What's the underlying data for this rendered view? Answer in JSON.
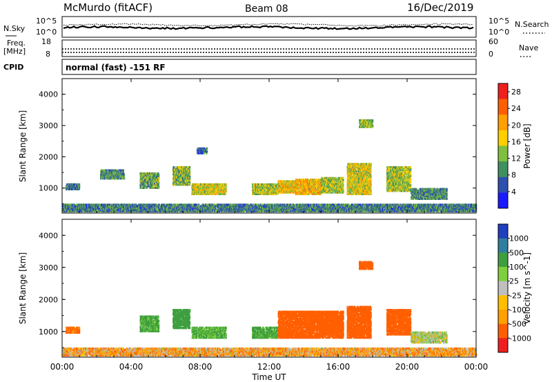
{
  "header": {
    "station": "McMurdo (fitACF)",
    "beam": "Beam 08",
    "date": "16/Dec/2019"
  },
  "noise_panel": {
    "left_label": "N.Sky",
    "right_label": "N.Search",
    "tick_top_left": "10^5",
    "tick_bottom_left": "10^0",
    "tick_top_right": "10^5",
    "tick_bottom_right": "10^0"
  },
  "freq_panel": {
    "label_line1": "Freq.",
    "label_line2": "[MHz]",
    "tick_top": "18",
    "tick_bottom": "8",
    "right_label": "Nave",
    "right_tick_top": "60",
    "right_tick_bottom": "0"
  },
  "cpid_panel": {
    "label": "CPID",
    "text": "normal (fast) -151 RF"
  },
  "colors": {
    "power": [
      "#1a1aff",
      "#2f4fb0",
      "#3f8f5f",
      "#7fbf3f",
      "#ffcf00",
      "#ff9f00",
      "#ff5f00",
      "#ef1f1f"
    ],
    "velocity": [
      "#ef1f1f",
      "#ff5f00",
      "#ff9f00",
      "#ffbf00",
      "#bfbfbf",
      "#7fcf3f",
      "#3f9f3f",
      "#2f7f9f",
      "#1f3fbf"
    ],
    "ground_scatter": "#bfbfbf"
  },
  "chart_data": [
    {
      "type": "heatmap",
      "name": "power",
      "ylabel": "Slant Range [km]",
      "ylim": [
        200,
        4500
      ],
      "yticks": [
        "1000",
        "2000",
        "3000",
        "4000"
      ],
      "xlim": [
        "00:00",
        "24:00"
      ],
      "colorbar_label": "Power [dB]",
      "colorbar_ticks": [
        "4",
        "8",
        "12",
        "16",
        "20",
        "24",
        "28"
      ],
      "colorbar_range": [
        0,
        30
      ],
      "regions": [
        {
          "t": [
            0.2,
            1.0
          ],
          "r": [
            950,
            1150
          ],
          "v": 8
        },
        {
          "t": [
            2.2,
            3.6
          ],
          "r": [
            1300,
            1600
          ],
          "v": 10
        },
        {
          "t": [
            4.5,
            5.6
          ],
          "r": [
            1000,
            1500
          ],
          "v": 12
        },
        {
          "t": [
            6.4,
            7.4
          ],
          "r": [
            1100,
            1700
          ],
          "v": 13
        },
        {
          "t": [
            7.5,
            9.5
          ],
          "r": [
            800,
            1150
          ],
          "v": 17
        },
        {
          "t": [
            7.8,
            8.4
          ],
          "r": [
            2100,
            2300
          ],
          "v": 8
        },
        {
          "t": [
            11.0,
            12.5
          ],
          "r": [
            800,
            1150
          ],
          "v": 15
        },
        {
          "t": [
            12.5,
            13.5
          ],
          "r": [
            850,
            1250
          ],
          "v": 19
        },
        {
          "t": [
            13.5,
            15.0
          ],
          "r": [
            800,
            1300
          ],
          "v": 20
        },
        {
          "t": [
            15.0,
            16.3
          ],
          "r": [
            850,
            1350
          ],
          "v": 15
        },
        {
          "t": [
            16.5,
            17.9
          ],
          "r": [
            800,
            1800
          ],
          "v": 17
        },
        {
          "t": [
            17.2,
            18.0
          ],
          "r": [
            2950,
            3200
          ],
          "v": 14
        },
        {
          "t": [
            18.8,
            20.2
          ],
          "r": [
            900,
            1700
          ],
          "v": 15
        },
        {
          "t": [
            20.2,
            22.3
          ],
          "r": [
            650,
            1000
          ],
          "v": 10
        },
        {
          "t": [
            0.0,
            24.0
          ],
          "r": [
            250,
            500
          ],
          "v": 9
        }
      ]
    },
    {
      "type": "heatmap",
      "name": "velocity",
      "ylabel": "Slant Range [km]",
      "ylim": [
        200,
        4500
      ],
      "yticks": [
        "1000",
        "2000",
        "3000",
        "4000"
      ],
      "xlim": [
        "00:00",
        "24:00"
      ],
      "xlabel": "Time UT",
      "xticks": [
        "00:00",
        "04:00",
        "08:00",
        "12:00",
        "16:00",
        "20:00",
        "00:00"
      ],
      "colorbar_label": "Velocity [m s^-1]",
      "colorbar_ticks": [
        "1000",
        "500",
        "100",
        "25",
        "-25",
        "-100",
        "-500",
        "-1000"
      ],
      "regions": [
        {
          "t": [
            0.2,
            1.0
          ],
          "r": [
            950,
            1150
          ],
          "v": -150
        },
        {
          "t": [
            4.5,
            5.6
          ],
          "r": [
            1000,
            1500
          ],
          "v": 150
        },
        {
          "t": [
            6.4,
            7.4
          ],
          "r": [
            1100,
            1700
          ],
          "v": 200
        },
        {
          "t": [
            7.5,
            9.5
          ],
          "r": [
            800,
            1150
          ],
          "v": 120
        },
        {
          "t": [
            11.0,
            12.5
          ],
          "r": [
            800,
            1150
          ],
          "v": 150
        },
        {
          "t": [
            12.5,
            16.3
          ],
          "r": [
            800,
            1650
          ],
          "v": -300
        },
        {
          "t": [
            16.5,
            17.9
          ],
          "r": [
            800,
            1800
          ],
          "v": -350
        },
        {
          "t": [
            17.2,
            18.0
          ],
          "r": [
            2950,
            3200
          ],
          "v": -200
        },
        {
          "t": [
            18.8,
            20.2
          ],
          "r": [
            900,
            1700
          ],
          "v": -300
        },
        {
          "t": [
            20.2,
            22.3
          ],
          "r": [
            650,
            1000
          ],
          "v": 20
        },
        {
          "t": [
            0.0,
            24.0
          ],
          "r": [
            250,
            500
          ],
          "v": -60
        }
      ]
    }
  ]
}
